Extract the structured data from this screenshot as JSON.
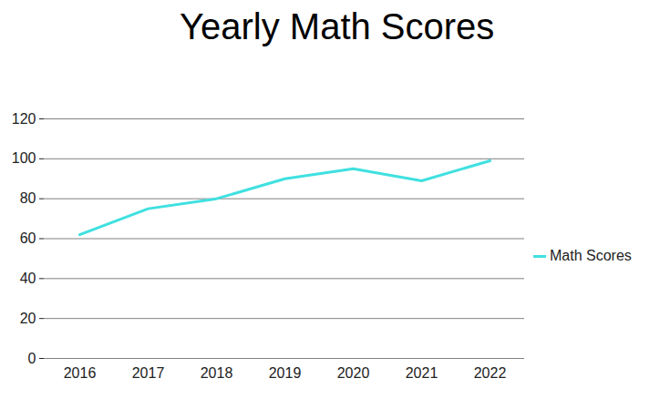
{
  "chart_data": {
    "type": "line",
    "title": "Yearly Math Scores",
    "categories": [
      "2016",
      "2017",
      "2018",
      "2019",
      "2020",
      "2021",
      "2022"
    ],
    "series": [
      {
        "name": "Math Scores",
        "color": "#40e0e0",
        "values": [
          62,
          75,
          80,
          90,
          95,
          89,
          99
        ]
      }
    ],
    "ylim": [
      0,
      120
    ],
    "yticks": [
      0,
      20,
      40,
      60,
      80,
      100,
      120
    ],
    "grid": true,
    "legend": "right"
  }
}
